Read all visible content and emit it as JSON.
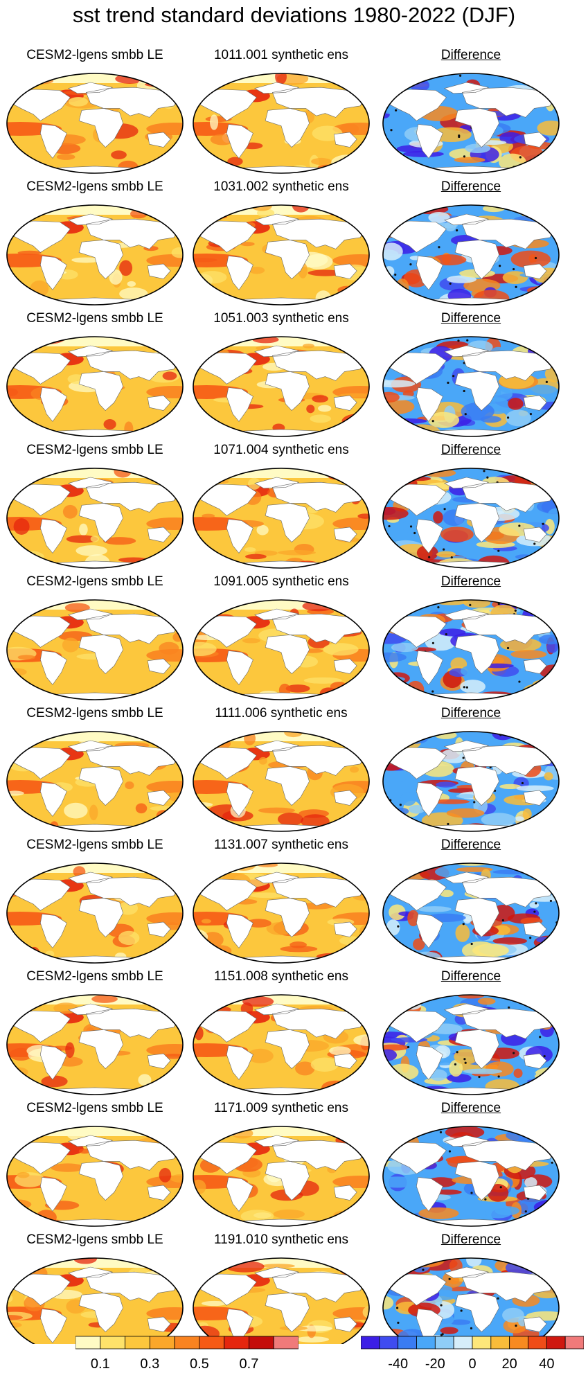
{
  "title": "sst trend standard deviations 1980-2022 (DJF)",
  "diff_label": "Difference",
  "rows": [
    {
      "left": "CESM2-lgens smbb LE",
      "middle": "1011.001 synthetic ens"
    },
    {
      "left": "CESM2-lgens smbb LE",
      "middle": "1031.002 synthetic ens"
    },
    {
      "left": "CESM2-lgens smbb LE",
      "middle": "1051.003 synthetic ens"
    },
    {
      "left": "CESM2-lgens smbb LE",
      "middle": "1071.004 synthetic ens"
    },
    {
      "left": "CESM2-lgens smbb LE",
      "middle": "1091.005 synthetic ens"
    },
    {
      "left": "CESM2-lgens smbb LE",
      "middle": "1111.006 synthetic ens"
    },
    {
      "left": "CESM2-lgens smbb LE",
      "middle": "1131.007 synthetic ens"
    },
    {
      "left": "CESM2-lgens smbb LE",
      "middle": "1151.008 synthetic ens"
    },
    {
      "left": "CESM2-lgens smbb LE",
      "middle": "1171.009 synthetic ens"
    },
    {
      "left": "CESM2-lgens smbb LE",
      "middle": "1191.010 synthetic ens"
    }
  ],
  "colorbar_left": {
    "colors": [
      "#fffbc4",
      "#fee26a",
      "#fcc73d",
      "#fba72a",
      "#f98320",
      "#f65a15",
      "#e5260e",
      "#c40d0b",
      "#f07a7a"
    ],
    "labels": [
      "0.1",
      "0.3",
      "0.5",
      "0.7"
    ]
  },
  "colorbar_right": {
    "colors": [
      "#3c1fe6",
      "#3f4cf0",
      "#3a7cf3",
      "#4aa7f8",
      "#8fcdf7",
      "#d6eefa",
      "#fde77a",
      "#f9bc3a",
      "#f88a20",
      "#ef4c17",
      "#cf180f",
      "#f07a7a"
    ],
    "labels": [
      "-40",
      "-20",
      "0",
      "20",
      "40"
    ]
  }
}
